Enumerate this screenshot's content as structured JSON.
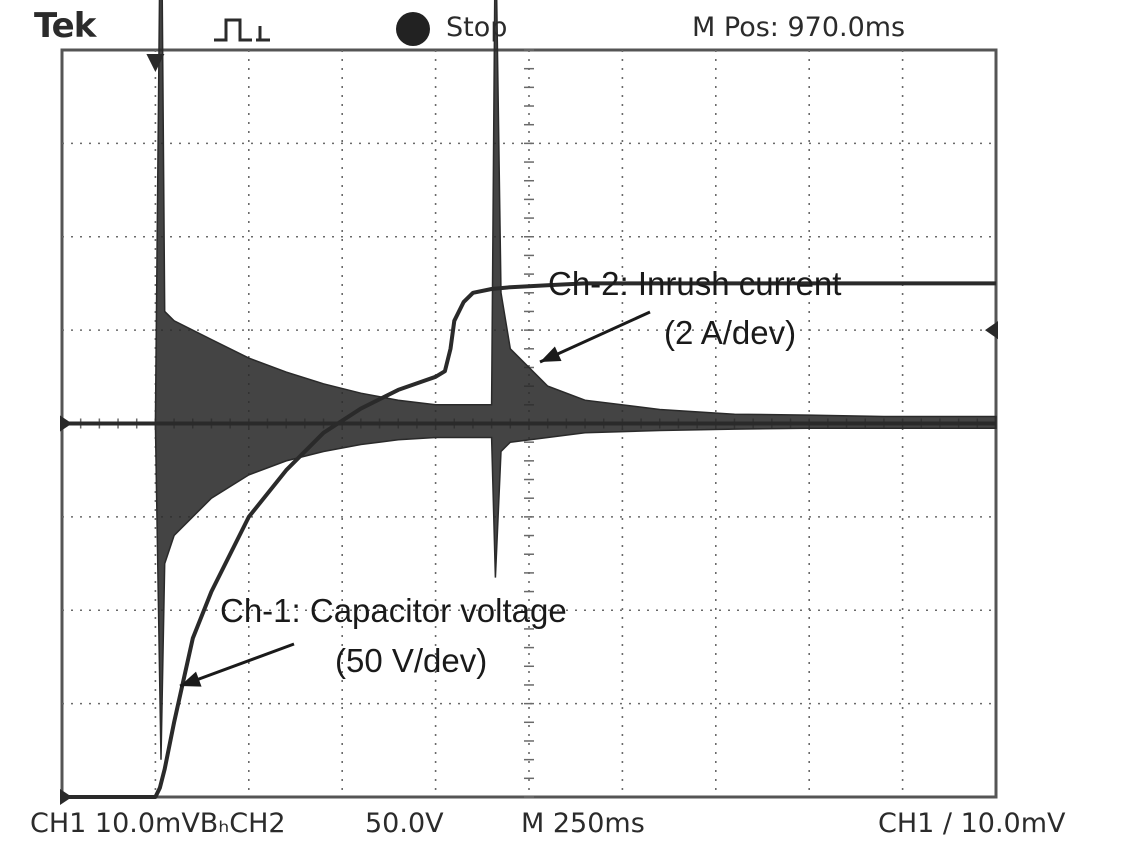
{
  "header": {
    "brand": "Tek",
    "run_state": "Stop",
    "m_pos": "M Pos: 970.0ms"
  },
  "footer": {
    "ch1_scale": "CH1  10.0mVBₕCH2",
    "ch2_scale": "50.0V",
    "timebase": "M 250ms",
    "trigger": "CH1 ∕ 10.0mV"
  },
  "annotations": {
    "ch2_title": "Ch-2: Inrush current",
    "ch2_scale": "(2 A/dev)",
    "ch1_title": "Ch-1: Capacitor voltage",
    "ch1_scale": "(50 V/dev)"
  },
  "colors": {
    "trace": "#2a2a2a",
    "grid": "#6a6a6a",
    "frame": "#555555",
    "background": "#ffffff"
  },
  "chart_data": {
    "type": "line",
    "title": "",
    "xlabel": "",
    "ylabel": "",
    "x_unit": "ms",
    "time_per_division": 250,
    "divisions": {
      "x": 10,
      "y": 8
    },
    "xlim": [
      0,
      2500
    ],
    "series": [
      {
        "name": "Ch-1: Capacitor voltage",
        "unit": "V",
        "volts_per_division": 50,
        "ground_division": -4,
        "x": [
          0,
          250,
          262,
          275,
          300,
          350,
          400,
          500,
          600,
          700,
          800,
          900,
          1000,
          1025,
          1040,
          1050,
          1075,
          1100,
          1150,
          1200,
          1300,
          1400,
          1600,
          1800,
          2000,
          2200,
          2500
        ],
        "y": [
          0,
          0,
          5,
          15,
          40,
          85,
          110,
          150,
          175,
          195,
          208,
          218,
          225,
          228,
          240,
          255,
          265,
          270,
          272,
          273,
          274,
          275,
          275,
          275,
          275,
          275,
          275
        ]
      },
      {
        "name": "Ch-2: Inrush current",
        "unit": "A",
        "amps_per_division": 2,
        "ground_division": 0,
        "x": [
          0,
          250,
          265,
          275,
          300,
          400,
          500,
          600,
          700,
          800,
          900,
          1000,
          1150,
          1160,
          1175,
          1200,
          1300,
          1400,
          1600,
          1800,
          2000,
          2200,
          2500
        ],
        "upper": [
          0,
          0,
          12.5,
          2.4,
          2.2,
          1.8,
          1.4,
          1.1,
          0.85,
          0.65,
          0.5,
          0.4,
          0.4,
          11,
          2.8,
          1.6,
          0.8,
          0.5,
          0.3,
          0.2,
          0.18,
          0.15,
          0.15
        ],
        "lower": [
          0,
          0,
          -7.2,
          -3.0,
          -2.4,
          -1.6,
          -1.1,
          -0.8,
          -0.6,
          -0.45,
          -0.35,
          -0.3,
          -0.3,
          -3.3,
          -0.6,
          -0.4,
          -0.3,
          -0.2,
          -0.15,
          -0.12,
          -0.1,
          -0.1,
          -0.1
        ]
      }
    ],
    "grid": true,
    "markers": {
      "trigger_position": "top, near division 1",
      "ch1_ground_marker": "left, division -4",
      "ch2_ground_marker": "left, division 0",
      "trigger_level": "right edge"
    }
  }
}
